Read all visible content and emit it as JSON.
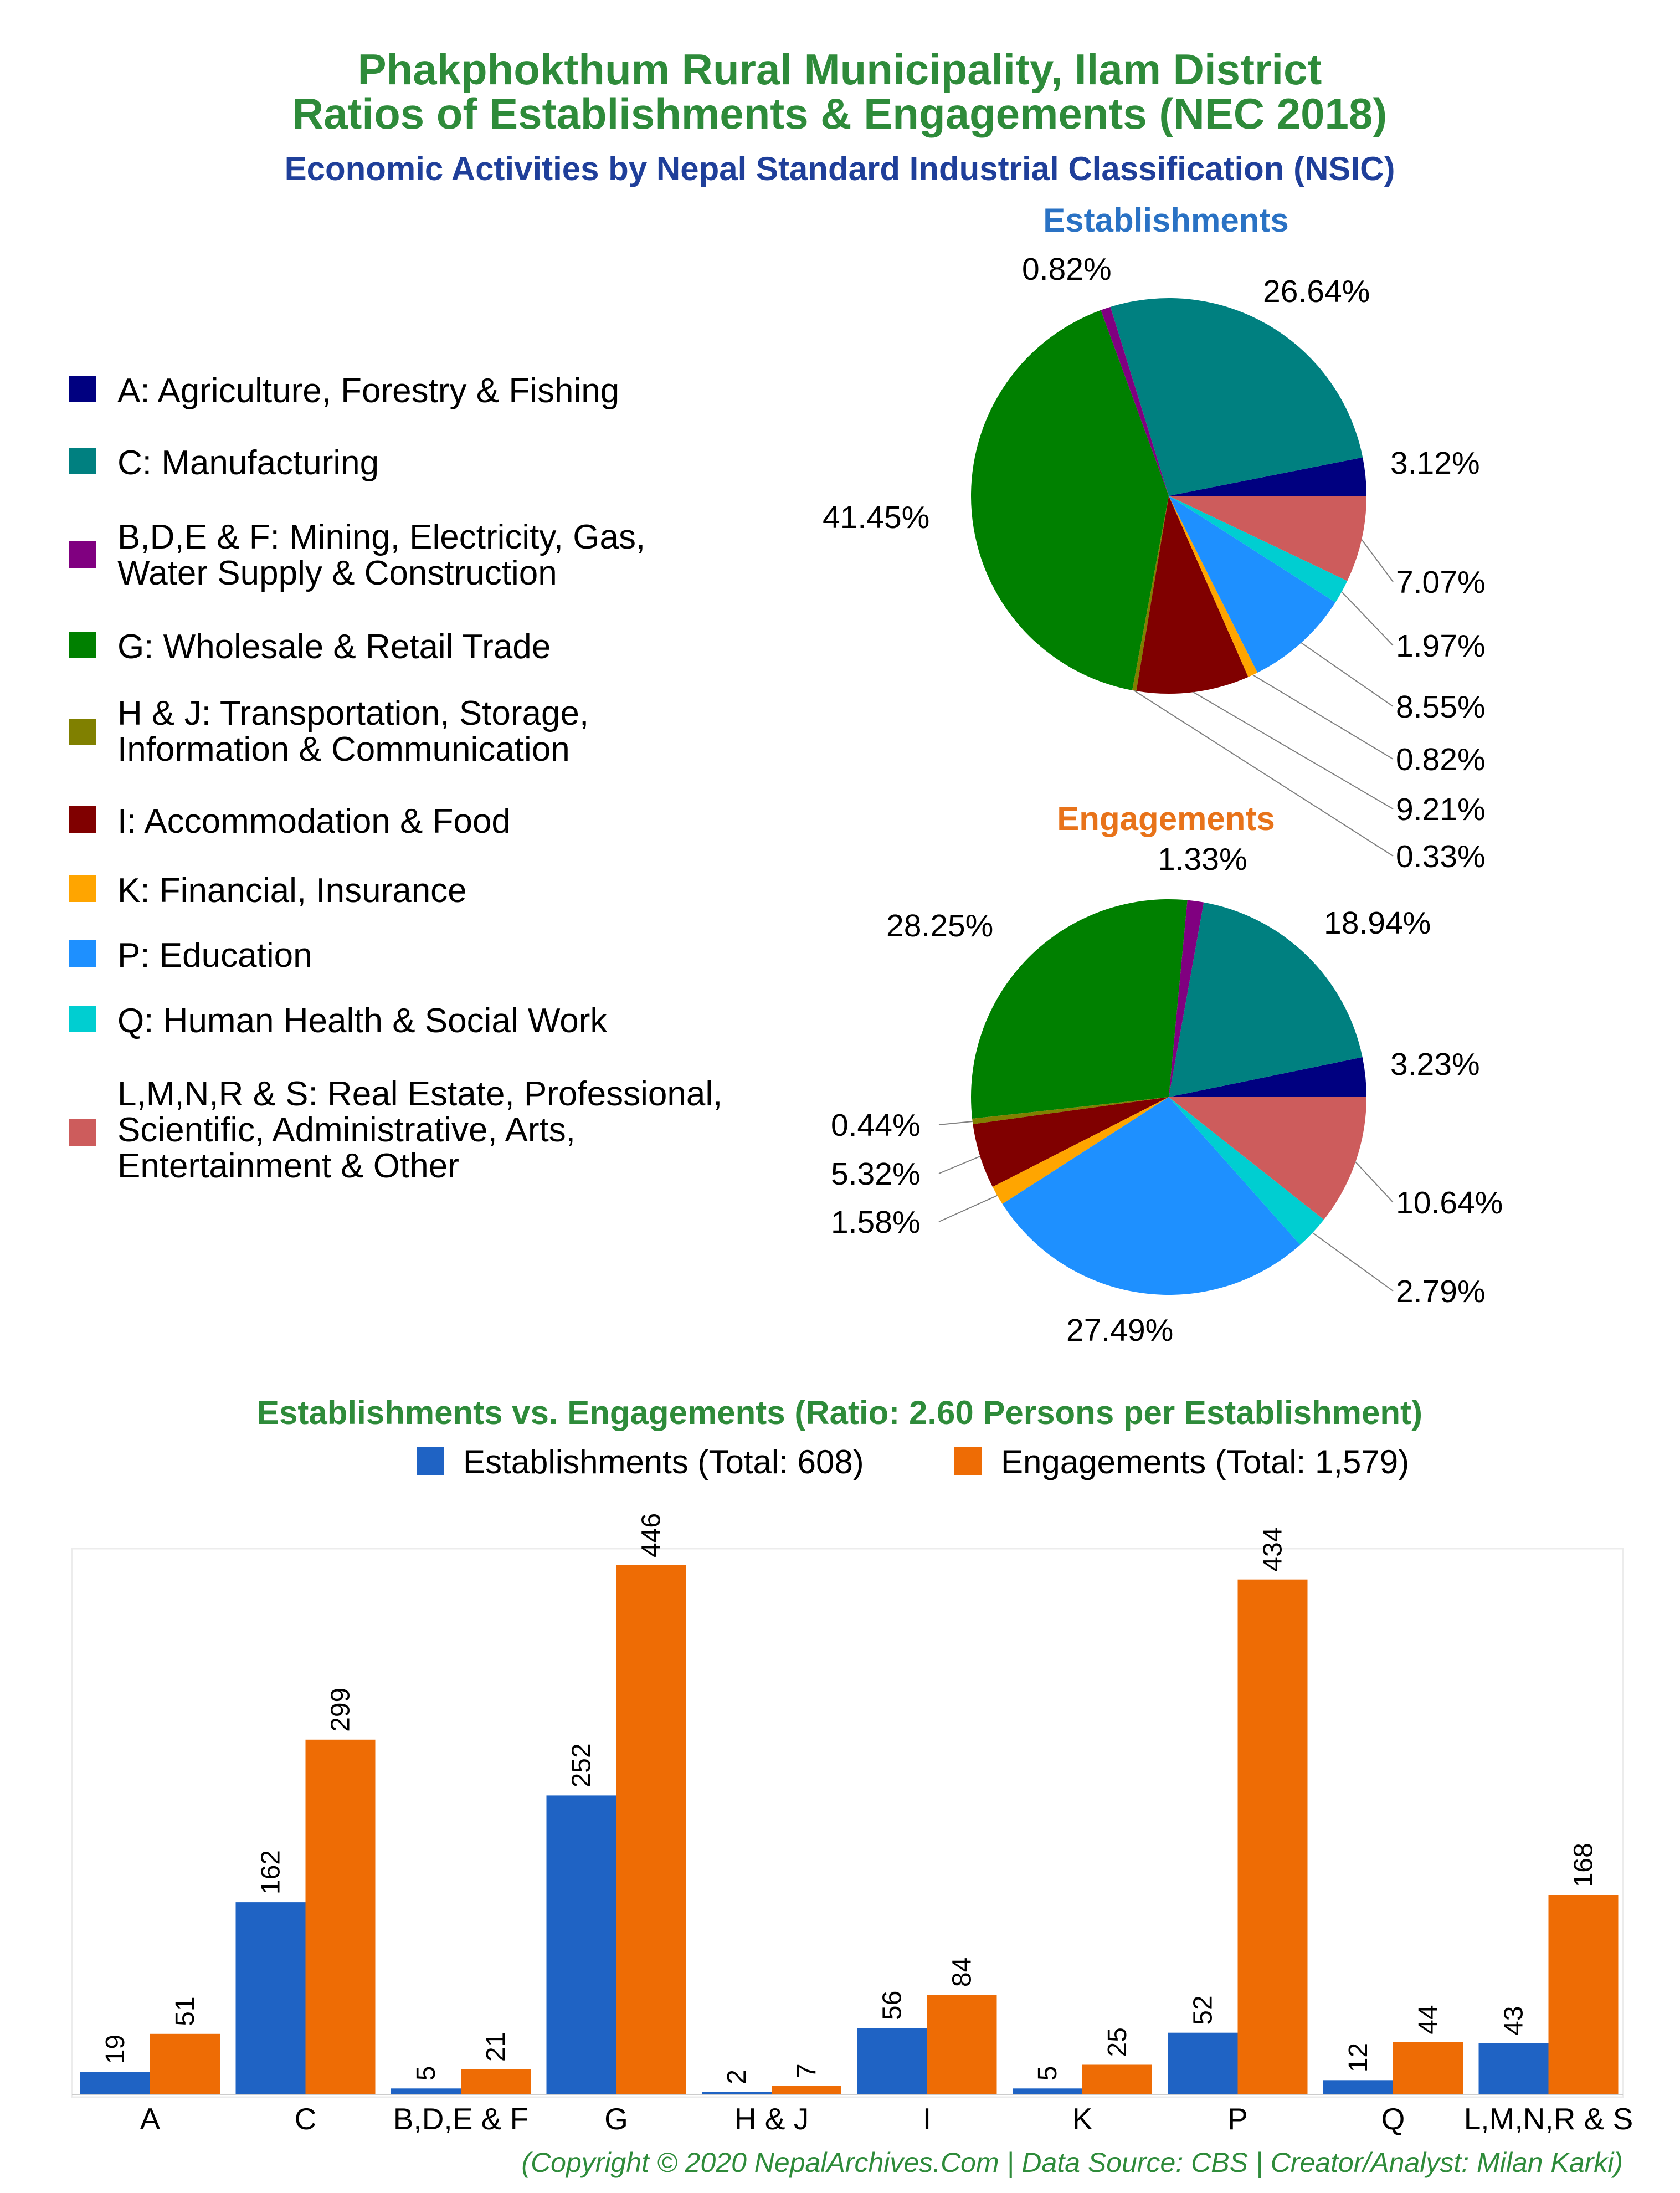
{
  "header": {
    "title_line1": "Phakphokthum Rural Municipality, Ilam District",
    "title_line2": "Ratios of Establishments & Engagements (NEC 2018)",
    "subtitle": "Economic Activities by Nepal Standard Industrial Classification (NSIC)"
  },
  "legend": [
    {
      "code": "A",
      "label": "A: Agriculture, Forestry & Fishing",
      "color": "#000080"
    },
    {
      "code": "C",
      "label": "C: Manufacturing",
      "color": "#008080"
    },
    {
      "code": "BDEF",
      "label_line1": "B,D,E & F: Mining, Electricity, Gas,",
      "label_line2": "Water Supply & Construction",
      "color": "#800080"
    },
    {
      "code": "G",
      "label": "G: Wholesale & Retail Trade",
      "color": "#008000"
    },
    {
      "code": "HJ",
      "label_line1": "H & J: Transportation, Storage,",
      "label_line2": "Information & Communication",
      "color": "#808000"
    },
    {
      "code": "I",
      "label": "I: Accommodation & Food",
      "color": "#800000"
    },
    {
      "code": "K",
      "label": "K: Financial, Insurance",
      "color": "#FFA500"
    },
    {
      "code": "P",
      "label": "P: Education",
      "color": "#1E90FF"
    },
    {
      "code": "Q",
      "label": "Q: Human Health & Social Work",
      "color": "#00CED1"
    },
    {
      "code": "LMNRS",
      "label_line1": "L,M,N,R & S: Real Estate, Professional,",
      "label_line2": "Scientific, Administrative, Arts,",
      "label_line3": "Entertainment & Other",
      "color": "#CD5C5C"
    }
  ],
  "chart_data": [
    {
      "type": "pie",
      "title": "Establishments",
      "categories": [
        "A",
        "C",
        "B,D,E & F",
        "G",
        "H & J",
        "I",
        "K",
        "P",
        "Q",
        "L,M,N,R & S"
      ],
      "values": [
        3.12,
        26.64,
        0.82,
        41.45,
        0.33,
        9.21,
        0.82,
        8.55,
        1.97,
        7.07
      ],
      "labels": [
        "3.12%",
        "26.64%",
        "0.82%",
        "41.45%",
        "0.33%",
        "9.21%",
        "0.82%",
        "8.55%",
        "1.97%",
        "7.07%"
      ],
      "colors": [
        "#000080",
        "#008080",
        "#800080",
        "#008000",
        "#808000",
        "#800000",
        "#FFA500",
        "#1E90FF",
        "#00CED1",
        "#CD5C5C"
      ]
    },
    {
      "type": "pie",
      "title": "Engagements",
      "categories": [
        "A",
        "C",
        "B,D,E & F",
        "G",
        "H & J",
        "I",
        "K",
        "P",
        "Q",
        "L,M,N,R & S"
      ],
      "values": [
        3.23,
        18.94,
        1.33,
        28.25,
        0.44,
        5.32,
        1.58,
        27.49,
        2.79,
        10.64
      ],
      "labels": [
        "3.23%",
        "18.94%",
        "1.33%",
        "28.25%",
        "0.44%",
        "5.32%",
        "1.58%",
        "27.49%",
        "2.79%",
        "10.64%"
      ],
      "colors": [
        "#000080",
        "#008080",
        "#800080",
        "#008000",
        "#808000",
        "#800000",
        "#FFA500",
        "#1E90FF",
        "#00CED1",
        "#CD5C5C"
      ]
    },
    {
      "type": "bar",
      "title": "Establishments vs. Engagements (Ratio: 2.60 Persons per Establishment)",
      "categories": [
        "A",
        "C",
        "B,D,E & F",
        "G",
        "H & J",
        "I",
        "K",
        "P",
        "Q",
        "L,M,N,R & S"
      ],
      "series": [
        {
          "name": "Establishments (Total: 608)",
          "color": "#1f63c4",
          "values": [
            19,
            162,
            5,
            252,
            2,
            56,
            5,
            52,
            12,
            43
          ]
        },
        {
          "name": "Engagements (Total: 1,579)",
          "color": "#ee6c05",
          "values": [
            51,
            299,
            21,
            446,
            7,
            84,
            25,
            434,
            44,
            168
          ]
        }
      ],
      "ylim": [
        0,
        460
      ],
      "legend_position": "top"
    }
  ],
  "footer": "(Copyright © 2020 NepalArchives.Com | Data Source: CBS | Creator/Analyst: Milan Karki)"
}
